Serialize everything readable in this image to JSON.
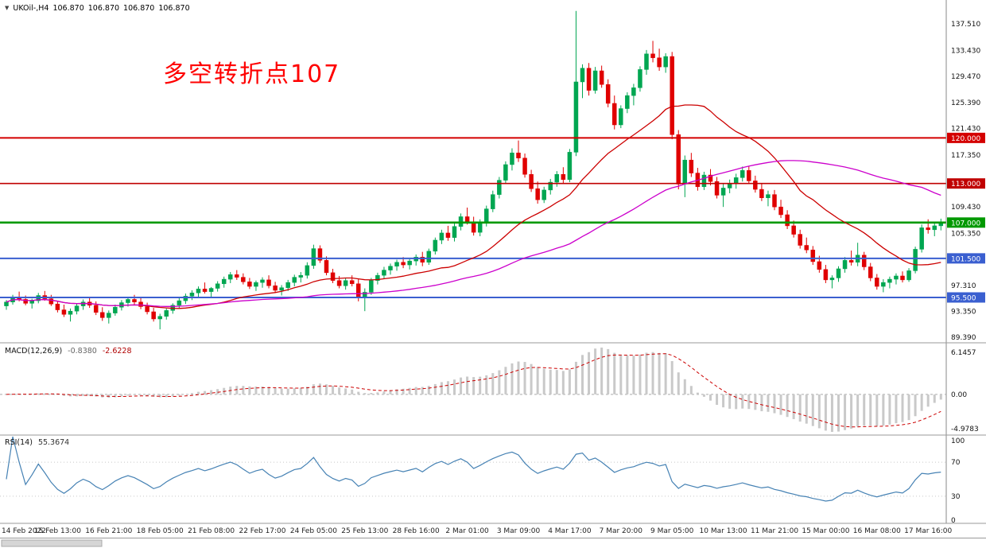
{
  "header": {
    "collapse_icon": "▼",
    "symbol": "UKOil-,H4",
    "open": "106.870",
    "high": "106.870",
    "low": "106.870",
    "close": "106.870"
  },
  "annotation": {
    "text": "多空转折点107",
    "color": "#ff0000"
  },
  "chart_data": [
    {
      "type": "candlestick",
      "symbol": "UKOil-",
      "timeframe": "H4",
      "x_labels": [
        "14 Feb 2022",
        "15 Feb 13:00",
        "16 Feb 21:00",
        "18 Feb 05:00",
        "21 Feb 08:00",
        "22 Feb 17:00",
        "24 Feb 05:00",
        "25 Feb 13:00",
        "28 Feb 16:00",
        "2 Mar 01:00",
        "3 Mar 09:00",
        "4 Mar 17:00",
        "7 Mar 20:00",
        "9 Mar 05:00",
        "10 Mar 13:00",
        "11 Mar 21:00",
        "15 Mar 00:00",
        "16 Mar 08:00",
        "17 Mar 16:00"
      ],
      "bars_per_label": 8,
      "y_ticks": [
        "137.510",
        "133.430",
        "129.470",
        "125.390",
        "121.430",
        "117.350",
        "109.430",
        "105.350",
        "97.310",
        "93.350",
        "89.390"
      ],
      "y_range": [
        88.66,
        140.93
      ],
      "hlines": [
        {
          "price": 120.0,
          "label": "120.000",
          "color": "#d40000",
          "width": 2
        },
        {
          "price": 113.0,
          "label": "113.000",
          "color": "#c00000",
          "width": 1.6
        },
        {
          "price": 107.0,
          "label": "107.000",
          "color": "#009900",
          "width": 2.6
        },
        {
          "price": 101.5,
          "label": "101.500",
          "color": "#3a5fd0",
          "width": 2
        },
        {
          "price": 95.5,
          "label": "95.500",
          "color": "#3a5fd0",
          "width": 2
        }
      ],
      "moving_averages": [
        {
          "type": "sma",
          "period": 21,
          "color": "#cc0000"
        },
        {
          "type": "sma",
          "period": 55,
          "color": "#cc00cc"
        }
      ],
      "colors": {
        "up": "#00a651",
        "down": "#e00000"
      },
      "ohlc": [
        [
          94.2,
          95.1,
          93.6,
          94.8
        ],
        [
          94.8,
          95.9,
          94.4,
          95.5
        ],
        [
          95.5,
          96.4,
          94.9,
          95.2
        ],
        [
          95.2,
          95.8,
          94.3,
          94.6
        ],
        [
          94.6,
          95.3,
          93.8,
          95.0
        ],
        [
          95.0,
          96.2,
          94.6,
          95.8
        ],
        [
          95.8,
          96.5,
          95.0,
          95.3
        ],
        [
          95.3,
          95.9,
          94.2,
          94.5
        ],
        [
          94.5,
          95.0,
          93.2,
          93.6
        ],
        [
          93.6,
          94.4,
          92.5,
          92.9
        ],
        [
          92.9,
          93.8,
          91.8,
          93.4
        ],
        [
          93.4,
          94.6,
          92.9,
          94.2
        ],
        [
          94.2,
          95.2,
          93.6,
          94.8
        ],
        [
          94.8,
          95.5,
          93.9,
          94.3
        ],
        [
          94.3,
          94.9,
          92.8,
          93.2
        ],
        [
          93.2,
          94.0,
          91.9,
          92.4
        ],
        [
          92.4,
          93.5,
          91.5,
          93.1
        ],
        [
          93.1,
          94.4,
          92.7,
          94.0
        ],
        [
          94.0,
          95.1,
          93.5,
          94.7
        ],
        [
          94.7,
          95.6,
          94.1,
          95.2
        ],
        [
          95.2,
          95.9,
          94.4,
          94.8
        ],
        [
          94.8,
          95.4,
          93.7,
          94.1
        ],
        [
          94.1,
          94.7,
          92.9,
          93.3
        ],
        [
          93.3,
          93.9,
          91.8,
          92.2
        ],
        [
          92.2,
          93.0,
          90.6,
          92.6
        ],
        [
          92.6,
          93.8,
          92.1,
          93.5
        ],
        [
          93.5,
          94.6,
          93.0,
          94.3
        ],
        [
          94.3,
          95.4,
          93.8,
          95.0
        ],
        [
          95.0,
          96.1,
          94.5,
          95.7
        ],
        [
          95.7,
          96.6,
          95.1,
          96.2
        ],
        [
          96.2,
          97.2,
          95.6,
          96.8
        ],
        [
          96.8,
          97.8,
          96.1,
          96.4
        ],
        [
          96.4,
          97.1,
          95.5,
          96.9
        ],
        [
          96.9,
          98.0,
          96.4,
          97.6
        ],
        [
          97.6,
          98.7,
          97.0,
          98.3
        ],
        [
          98.3,
          99.4,
          97.7,
          99.0
        ],
        [
          99.0,
          99.7,
          98.2,
          98.6
        ],
        [
          98.6,
          99.2,
          97.5,
          97.9
        ],
        [
          97.9,
          98.5,
          96.8,
          97.2
        ],
        [
          97.2,
          98.1,
          96.5,
          97.8
        ],
        [
          97.8,
          98.6,
          97.0,
          98.2
        ],
        [
          98.2,
          98.9,
          96.9,
          97.3
        ],
        [
          97.3,
          97.9,
          96.2,
          96.6
        ],
        [
          96.6,
          97.4,
          95.8,
          97.0
        ],
        [
          97.0,
          98.2,
          96.5,
          97.8
        ],
        [
          97.8,
          99.0,
          97.2,
          98.6
        ],
        [
          98.6,
          99.4,
          97.8,
          98.9
        ],
        [
          98.9,
          100.9,
          98.4,
          100.4
        ],
        [
          100.4,
          103.6,
          99.9,
          103.0
        ],
        [
          103.0,
          103.5,
          100.8,
          101.2
        ],
        [
          101.2,
          101.8,
          98.9,
          99.3
        ],
        [
          99.3,
          99.9,
          97.7,
          98.1
        ],
        [
          98.1,
          98.8,
          96.9,
          97.3
        ],
        [
          97.3,
          98.5,
          96.7,
          98.1
        ],
        [
          98.1,
          98.9,
          97.2,
          97.6
        ],
        [
          97.6,
          98.3,
          94.9,
          95.5
        ],
        [
          95.5,
          96.9,
          93.4,
          96.3
        ],
        [
          96.3,
          98.5,
          95.9,
          98.1
        ],
        [
          98.1,
          99.3,
          97.5,
          98.9
        ],
        [
          98.9,
          100.2,
          98.4,
          99.7
        ],
        [
          99.7,
          100.7,
          99.0,
          100.3
        ],
        [
          100.3,
          101.3,
          99.6,
          100.9
        ],
        [
          100.9,
          101.7,
          100.0,
          100.5
        ],
        [
          100.5,
          101.4,
          99.8,
          101.1
        ],
        [
          101.1,
          102.1,
          100.4,
          101.7
        ],
        [
          101.7,
          102.5,
          100.3,
          100.9
        ],
        [
          100.9,
          103.0,
          100.5,
          102.6
        ],
        [
          102.6,
          104.7,
          102.1,
          104.3
        ],
        [
          104.3,
          105.9,
          103.7,
          105.4
        ],
        [
          105.4,
          106.5,
          104.2,
          104.7
        ],
        [
          104.7,
          106.9,
          104.1,
          106.4
        ],
        [
          106.4,
          108.4,
          105.8,
          107.9
        ],
        [
          107.9,
          109.3,
          106.7,
          107.1
        ],
        [
          107.1,
          107.9,
          105.0,
          105.5
        ],
        [
          105.5,
          107.5,
          104.9,
          107.0
        ],
        [
          107.0,
          109.6,
          106.4,
          109.1
        ],
        [
          109.1,
          111.9,
          108.6,
          111.3
        ],
        [
          111.3,
          114.0,
          110.7,
          113.5
        ],
        [
          113.5,
          116.4,
          112.9,
          115.9
        ],
        [
          115.9,
          118.4,
          115.0,
          117.7
        ],
        [
          117.7,
          119.6,
          116.3,
          116.9
        ],
        [
          116.9,
          117.6,
          113.9,
          114.4
        ],
        [
          114.4,
          115.1,
          111.7,
          112.2
        ],
        [
          112.2,
          113.3,
          109.9,
          110.5
        ],
        [
          110.5,
          112.5,
          110.0,
          112.0
        ],
        [
          112.0,
          113.7,
          111.3,
          113.2
        ],
        [
          113.2,
          114.9,
          112.5,
          114.4
        ],
        [
          114.4,
          115.5,
          113.0,
          113.6
        ],
        [
          113.6,
          118.3,
          113.2,
          117.8
        ],
        [
          117.8,
          139.5,
          117.2,
          128.6
        ],
        [
          128.6,
          131.3,
          126.1,
          130.7
        ],
        [
          130.7,
          131.5,
          126.5,
          127.3
        ],
        [
          127.3,
          130.9,
          126.8,
          130.3
        ],
        [
          130.3,
          131.1,
          127.7,
          128.2
        ],
        [
          128.2,
          129.0,
          124.7,
          125.3
        ],
        [
          125.3,
          126.5,
          121.3,
          122.0
        ],
        [
          122.0,
          125.0,
          121.5,
          124.5
        ],
        [
          124.5,
          127.0,
          123.8,
          126.5
        ],
        [
          126.5,
          128.3,
          125.0,
          127.7
        ],
        [
          127.7,
          131.0,
          127.1,
          130.5
        ],
        [
          130.5,
          133.5,
          129.7,
          132.9
        ],
        [
          132.9,
          134.9,
          131.6,
          132.3
        ],
        [
          132.3,
          133.7,
          130.3,
          130.9
        ],
        [
          130.9,
          133.0,
          130.0,
          132.5
        ],
        [
          132.5,
          133.2,
          119.8,
          120.5
        ],
        [
          120.5,
          121.2,
          112.1,
          112.9
        ],
        [
          112.9,
          117.3,
          110.9,
          116.6
        ],
        [
          116.6,
          117.7,
          114.0,
          114.6
        ],
        [
          114.6,
          115.4,
          111.9,
          112.5
        ],
        [
          112.5,
          114.8,
          112.0,
          114.3
        ],
        [
          114.3,
          115.2,
          112.7,
          113.3
        ],
        [
          113.3,
          114.0,
          110.7,
          111.2
        ],
        [
          111.2,
          112.9,
          109.4,
          112.3
        ],
        [
          112.3,
          113.6,
          111.5,
          113.0
        ],
        [
          113.0,
          114.5,
          112.2,
          113.9
        ],
        [
          113.9,
          115.6,
          113.3,
          115.0
        ],
        [
          115.0,
          115.7,
          112.9,
          113.4
        ],
        [
          113.4,
          114.2,
          111.6,
          112.1
        ],
        [
          112.1,
          113.0,
          110.3,
          110.8
        ],
        [
          110.8,
          111.9,
          109.5,
          111.3
        ],
        [
          111.3,
          112.0,
          108.9,
          109.4
        ],
        [
          109.4,
          110.5,
          107.7,
          108.2
        ],
        [
          108.2,
          108.9,
          106.0,
          106.5
        ],
        [
          106.5,
          107.3,
          104.7,
          105.2
        ],
        [
          105.2,
          105.9,
          103.0,
          103.5
        ],
        [
          103.5,
          104.7,
          102.3,
          102.8
        ],
        [
          102.8,
          103.4,
          100.5,
          101.0
        ],
        [
          101.0,
          101.9,
          99.3,
          99.8
        ],
        [
          99.8,
          100.5,
          97.7,
          98.2
        ],
        [
          98.2,
          98.9,
          96.9,
          98.5
        ],
        [
          98.5,
          100.3,
          97.9,
          99.9
        ],
        [
          99.9,
          101.7,
          99.3,
          101.2
        ],
        [
          101.2,
          102.7,
          100.4,
          100.9
        ],
        [
          100.9,
          103.9,
          100.3,
          102.0
        ],
        [
          102.0,
          102.5,
          99.7,
          100.2
        ],
        [
          100.2,
          100.8,
          98.0,
          98.5
        ],
        [
          98.5,
          99.1,
          96.7,
          97.2
        ],
        [
          97.2,
          98.3,
          96.3,
          97.8
        ],
        [
          97.8,
          98.7,
          96.9,
          98.3
        ],
        [
          98.3,
          99.2,
          97.5,
          98.8
        ],
        [
          98.8,
          99.5,
          97.8,
          98.2
        ],
        [
          98.2,
          100.0,
          97.9,
          99.6
        ],
        [
          99.6,
          103.3,
          99.2,
          102.9
        ],
        [
          102.9,
          106.7,
          102.4,
          106.2
        ],
        [
          106.2,
          107.5,
          105.3,
          105.9
        ],
        [
          105.9,
          107.0,
          104.9,
          106.5
        ],
        [
          106.5,
          107.6,
          105.8,
          106.87
        ]
      ]
    },
    {
      "type": "macd",
      "label": "MACD(12,26,9)",
      "values": [
        "-0.8380",
        "-2.6228"
      ],
      "params": [
        12,
        26,
        9
      ],
      "y_labels": [
        "6.1457",
        "0.00",
        "-4.9783"
      ],
      "histogram_color": "#c9c9c9",
      "signal_color": "#cc0000"
    },
    {
      "type": "rsi",
      "label": "RSI(14)",
      "value": "55.3674",
      "period": 14,
      "levels": [
        70,
        30
      ],
      "y_labels": [
        "100",
        "70",
        "30",
        "0"
      ],
      "line_color": "#4682b4"
    }
  ]
}
